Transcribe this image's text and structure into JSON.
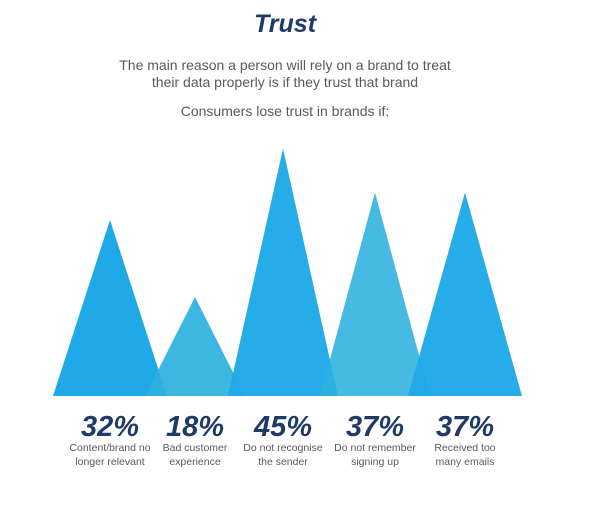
{
  "title": "Trust",
  "subtitle_line1": "The main reason a person will rely on a brand to treat",
  "subtitle_line2": "their data properly is if they trust that brand",
  "intro": "Consumers lose trust in brands if:",
  "colors": {
    "primary": "#1fa9e8",
    "secondary": "#2eb0e0",
    "value_text": "#1f3a68",
    "label_text": "#555a60"
  },
  "chart_data": {
    "type": "area",
    "categories": [
      "Content/brand no longer relevant",
      "Bad customer experience",
      "Do not recognise the sender",
      "Do not remember signing up",
      "Received too many emails"
    ],
    "values": [
      32,
      18,
      45,
      37,
      37
    ],
    "value_labels": [
      "32%",
      "18%",
      "45%",
      "37%",
      "37%"
    ],
    "category_lines": [
      [
        "Content/brand no",
        "longer relevant"
      ],
      [
        "Bad customer",
        "experience"
      ],
      [
        "Do not recognise",
        "the sender"
      ],
      [
        "Do not remember",
        "signing up"
      ],
      [
        "Received too",
        "many emails"
      ]
    ],
    "ylim": [
      0,
      45
    ]
  }
}
